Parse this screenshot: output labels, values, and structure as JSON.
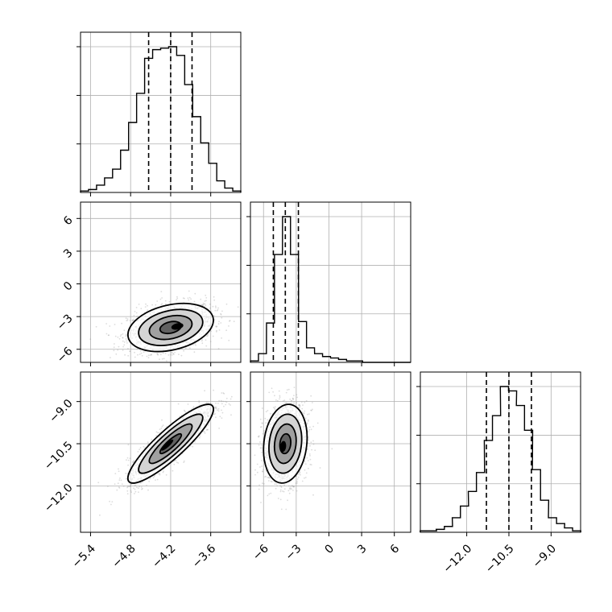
{
  "chart_data": {
    "type": "corner",
    "grid": true,
    "colors": {
      "ink": "#000000",
      "grid": "#b0b0b0",
      "points": "#9a9a9a",
      "density": [
        "#d0d0d0",
        "#9a9a9a",
        "#5a5a5a",
        "#000000"
      ]
    },
    "parameters": [
      {
        "ticks": [
          -5.4,
          -4.8,
          -4.2,
          -3.6
        ],
        "tick_labels": [
          "−5.4",
          "−4.8",
          "−4.2",
          "−3.6"
        ],
        "range": [
          -5.55,
          -3.15
        ],
        "quantiles": [
          -4.53,
          -4.2,
          -3.88
        ],
        "hist_x": [
          -5.49,
          -5.37,
          -5.25,
          -5.13,
          -5.01,
          -4.89,
          -4.77,
          -4.65,
          -4.53,
          -4.41,
          -4.29,
          -4.17,
          -4.05,
          -3.93,
          -3.81,
          -3.69,
          -3.57,
          -3.45,
          -3.33,
          -3.21
        ],
        "hist_counts": [
          1,
          2,
          5,
          10,
          16,
          29,
          48,
          68,
          92,
          98,
          99,
          100,
          94,
          74,
          52,
          34,
          20,
          8,
          3,
          1
        ]
      },
      {
        "ticks": [
          -6,
          -3,
          0,
          3,
          6
        ],
        "tick_labels": [
          "−6",
          "−3",
          "0",
          "3",
          "6"
        ],
        "range": [
          -7.2,
          7.5
        ],
        "quantiles": [
          -5.1,
          -4.0,
          -2.8
        ],
        "hist_x": [
          -6.83,
          -6.1,
          -5.36,
          -4.63,
          -3.89,
          -3.16,
          -2.42,
          -1.69,
          -0.95,
          -0.22,
          0.52,
          1.25,
          1.99,
          2.72,
          3.46,
          4.19,
          4.93,
          5.66,
          6.4,
          7.13
        ],
        "hist_counts": [
          1,
          6,
          27,
          74,
          100,
          74,
          28,
          10,
          6,
          4,
          3,
          2,
          1,
          1,
          0,
          0,
          0,
          0,
          0,
          0
        ]
      },
      {
        "ticks": [
          -12.0,
          -10.5,
          -9.0
        ],
        "tick_labels": [
          "−12.0",
          "−10.5",
          "−9.0"
        ],
        "range": [
          -13.65,
          -7.95
        ],
        "quantiles": [
          -11.3,
          -10.5,
          -9.7
        ],
        "hist_x": [
          -13.51,
          -13.22,
          -12.94,
          -12.65,
          -12.37,
          -12.08,
          -11.8,
          -11.51,
          -11.23,
          -10.94,
          -10.66,
          -10.37,
          -10.09,
          -9.8,
          -9.52,
          -9.23,
          -8.95,
          -8.66,
          -8.38,
          -8.09
        ],
        "hist_counts": [
          1,
          1,
          2,
          4,
          10,
          18,
          28,
          41,
          63,
          80,
          100,
          97,
          87,
          70,
          43,
          22,
          10,
          6,
          3,
          1
        ]
      }
    ],
    "pairs": [
      {
        "x_param": 0,
        "y_param": 1,
        "mean": [
          -4.2,
          -4.0
        ],
        "sd": [
          0.32,
          1.1
        ],
        "corr": 0.3,
        "density_peak": [
          -4.1,
          -3.9
        ],
        "contour_radii": [
          0.5,
          1.0,
          1.5,
          2.0
        ]
      },
      {
        "x_param": 0,
        "y_param": 2,
        "mean": [
          -4.2,
          -10.5
        ],
        "sd": [
          0.32,
          0.7
        ],
        "corr": 0.88,
        "density_peak": [
          -4.25,
          -10.55
        ],
        "contour_radii": [
          0.5,
          1.0,
          1.5,
          2.0
        ]
      },
      {
        "x_param": 1,
        "y_param": 2,
        "mean": [
          -4.0,
          -10.5
        ],
        "sd": [
          1.0,
          0.7
        ],
        "corr": 0.15,
        "density_peak": [
          -4.2,
          -10.6
        ],
        "contour_radii": [
          0.5,
          1.0,
          1.5,
          2.0
        ]
      }
    ]
  }
}
